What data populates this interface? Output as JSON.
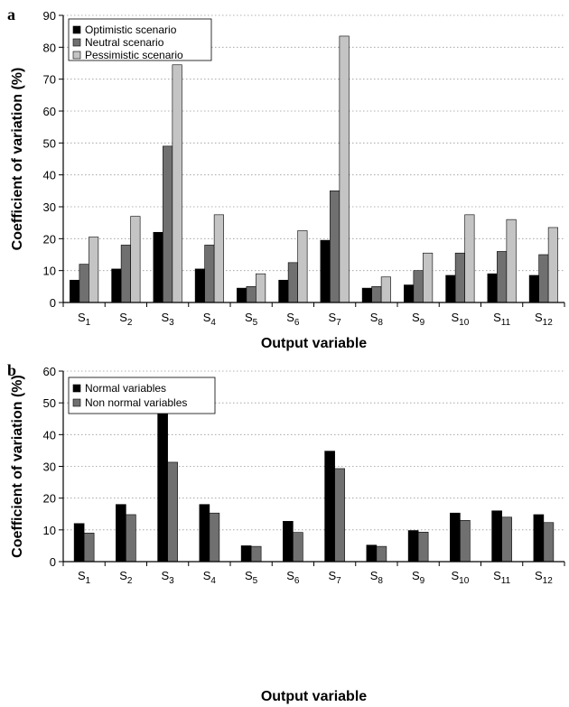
{
  "chart_data": [
    {
      "type": "bar",
      "panel_label": "a",
      "xlabel": "Output variable",
      "ylabel": "Coefficient of variation (%)",
      "ylim": [
        0,
        90
      ],
      "yticks": [
        0,
        10,
        20,
        30,
        40,
        50,
        60,
        70,
        80,
        90
      ],
      "grid": "horizontal dotted",
      "legend_position": "top-left",
      "categories": [
        {
          "base": "S",
          "sub": "1"
        },
        {
          "base": "S",
          "sub": "2"
        },
        {
          "base": "S",
          "sub": "3"
        },
        {
          "base": "S",
          "sub": "4"
        },
        {
          "base": "S",
          "sub": "5"
        },
        {
          "base": "S",
          "sub": "6"
        },
        {
          "base": "S",
          "sub": "7"
        },
        {
          "base": "S",
          "sub": "8"
        },
        {
          "base": "S",
          "sub": "9"
        },
        {
          "base": "S",
          "sub": "10"
        },
        {
          "base": "S",
          "sub": "11"
        },
        {
          "base": "S",
          "sub": "12"
        }
      ],
      "series": [
        {
          "name": "Optimistic scenario",
          "color": "#000000",
          "values": [
            7,
            10.5,
            22,
            10.5,
            4.5,
            7,
            19.5,
            4.5,
            5.5,
            8.5,
            9,
            8.5
          ]
        },
        {
          "name": "Neutral scenario",
          "color": "#707070",
          "values": [
            12,
            18,
            49,
            18,
            5,
            12.5,
            35,
            5,
            10,
            15.5,
            16,
            15
          ]
        },
        {
          "name": "Pessimistic scenario",
          "color": "#c4c4c4",
          "values": [
            20.5,
            27,
            74.5,
            27.5,
            9,
            22.5,
            83.5,
            8,
            15.5,
            27.5,
            26,
            23.5
          ]
        }
      ]
    },
    {
      "type": "bar",
      "panel_label": "b",
      "xlabel": "Output variable",
      "ylabel": "Coefficient of variation (%)",
      "ylim": [
        0,
        60
      ],
      "yticks": [
        0,
        10,
        20,
        30,
        40,
        50,
        60
      ],
      "grid": "horizontal dotted",
      "legend_position": "top-left",
      "categories": [
        {
          "base": "S",
          "sub": "1"
        },
        {
          "base": "S",
          "sub": "2"
        },
        {
          "base": "S",
          "sub": "3"
        },
        {
          "base": "S",
          "sub": "4"
        },
        {
          "base": "S",
          "sub": "5"
        },
        {
          "base": "S",
          "sub": "6"
        },
        {
          "base": "S",
          "sub": "7"
        },
        {
          "base": "S",
          "sub": "8"
        },
        {
          "base": "S",
          "sub": "9"
        },
        {
          "base": "S",
          "sub": "10"
        },
        {
          "base": "S",
          "sub": "11"
        },
        {
          "base": "S",
          "sub": "12"
        }
      ],
      "series": [
        {
          "name": "Normal variables",
          "color": "#000000",
          "values": [
            12,
            18,
            49,
            18,
            5,
            12.7,
            34.8,
            5.2,
            9.8,
            15.3,
            16,
            14.8
          ]
        },
        {
          "name": "Non normal variables",
          "color": "#707070",
          "values": [
            9,
            14.8,
            31.3,
            15.3,
            4.8,
            9.2,
            29.3,
            4.8,
            9.3,
            13,
            14,
            12.3
          ]
        }
      ]
    }
  ]
}
